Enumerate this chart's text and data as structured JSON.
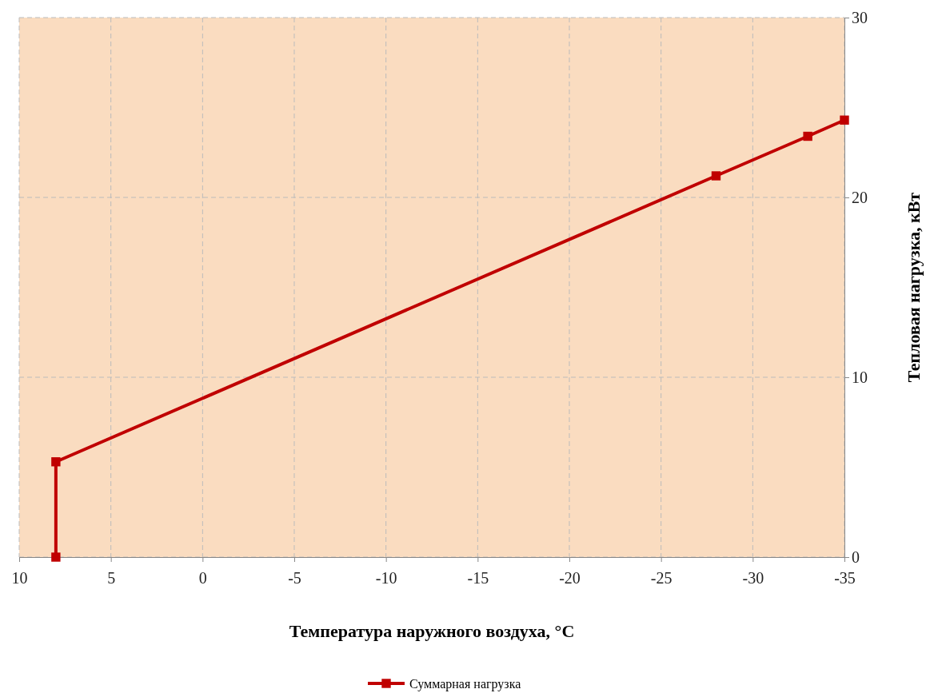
{
  "chart_data": {
    "type": "line",
    "xlabel": "Температура наружного воздуха, °С",
    "ylabel": "Тепловая нагрузка, кВт",
    "x": [
      8,
      8,
      -28,
      -33,
      -35
    ],
    "series": [
      {
        "name": "Суммарная нагрузка",
        "color": "#c00000",
        "values": [
          0,
          5.3,
          21.2,
          23.4,
          24.3
        ]
      }
    ],
    "xlim": [
      10,
      -35
    ],
    "xticks": [
      10,
      5,
      0,
      -5,
      -10,
      -15,
      -20,
      -25,
      -30,
      -35
    ],
    "ylim": [
      0,
      30
    ],
    "yticks": [
      0,
      10,
      20,
      30
    ],
    "grid": true,
    "legend": "bottom",
    "marker": "square",
    "line_style": "solid"
  }
}
